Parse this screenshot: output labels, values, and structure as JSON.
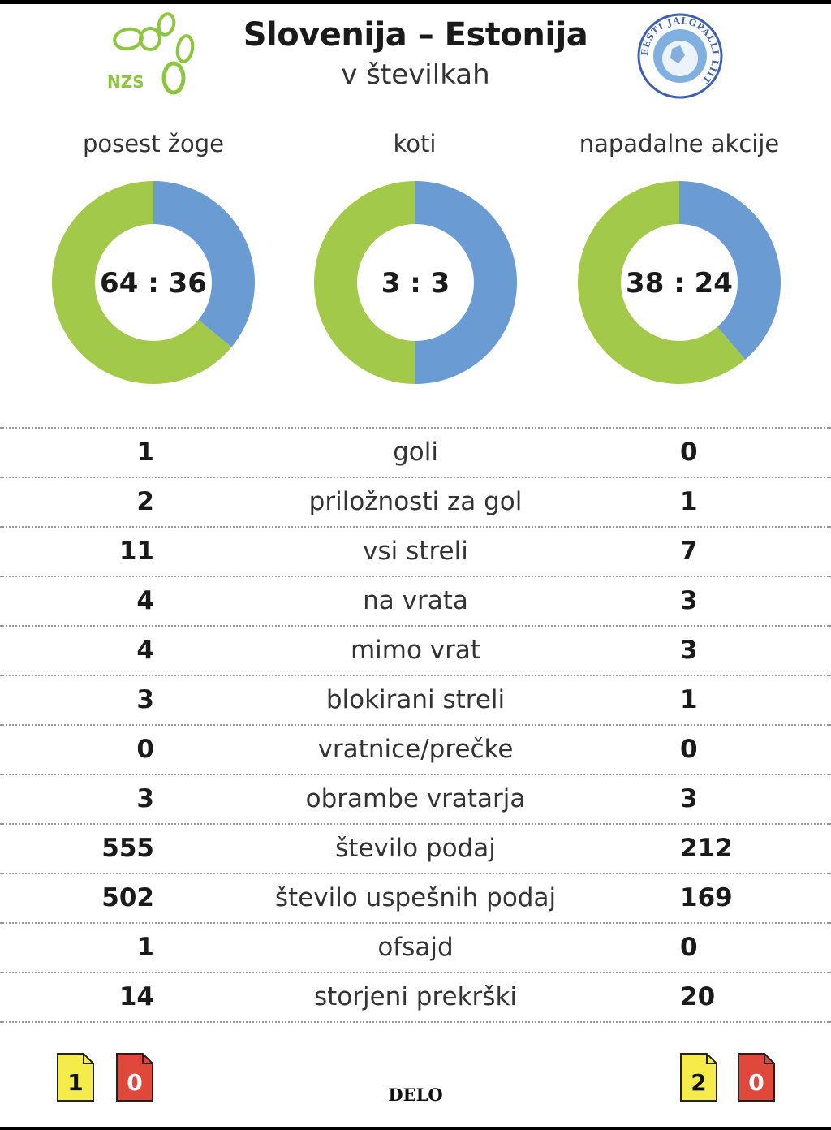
{
  "header": {
    "title": "Slovenija – Estonija",
    "subtitle": "v številkah",
    "left_logo_text": "NZS",
    "right_logo_text": "EESTI JALGPALLI LIIT"
  },
  "colors": {
    "slovenia": "#a2c94a",
    "estonia": "#6a9bd3",
    "yellow_card": "#f5ec4a",
    "red_card": "#e0483b"
  },
  "chart_data": [
    {
      "type": "pie",
      "title": "posest žoge",
      "center_label": "64 : 36",
      "slices": [
        {
          "team": "Slovenija",
          "value": 64
        },
        {
          "team": "Estonija",
          "value": 36
        }
      ]
    },
    {
      "type": "pie",
      "title": "koti",
      "center_label": "3 : 3",
      "slices": [
        {
          "team": "Slovenija",
          "value": 3
        },
        {
          "team": "Estonija",
          "value": 3
        }
      ]
    },
    {
      "type": "pie",
      "title": "napadalne akcije",
      "center_label": "38 : 24",
      "slices": [
        {
          "team": "Slovenija",
          "value": 38
        },
        {
          "team": "Estonija",
          "value": 24
        }
      ]
    },
    {
      "type": "table",
      "rows": [
        {
          "left": "1",
          "label": "goli",
          "right": "0"
        },
        {
          "left": "2",
          "label": "priložnosti za gol",
          "right": "1"
        },
        {
          "left": "11",
          "label": "vsi streli",
          "right": "7"
        },
        {
          "left": "4",
          "label": "na vrata",
          "right": "3"
        },
        {
          "left": "4",
          "label": "mimo vrat",
          "right": "3"
        },
        {
          "left": "3",
          "label": "blokirani streli",
          "right": "1"
        },
        {
          "left": "0",
          "label": "vratnice/prečke",
          "right": "0"
        },
        {
          "left": "3",
          "label": "obrambe vratarja",
          "right": "3"
        },
        {
          "left": "555",
          "label": "število podaj",
          "right": "212"
        },
        {
          "left": "502",
          "label": "število uspešnih podaj",
          "right": "169"
        },
        {
          "left": "1",
          "label": "ofsajd",
          "right": "0"
        },
        {
          "left": "14",
          "label": "storjeni prekrški",
          "right": "20"
        }
      ]
    }
  ],
  "cards": {
    "left": {
      "yellow": "1",
      "red": "0"
    },
    "right": {
      "yellow": "2",
      "red": "0"
    }
  },
  "footer": {
    "brand": "DELO"
  }
}
